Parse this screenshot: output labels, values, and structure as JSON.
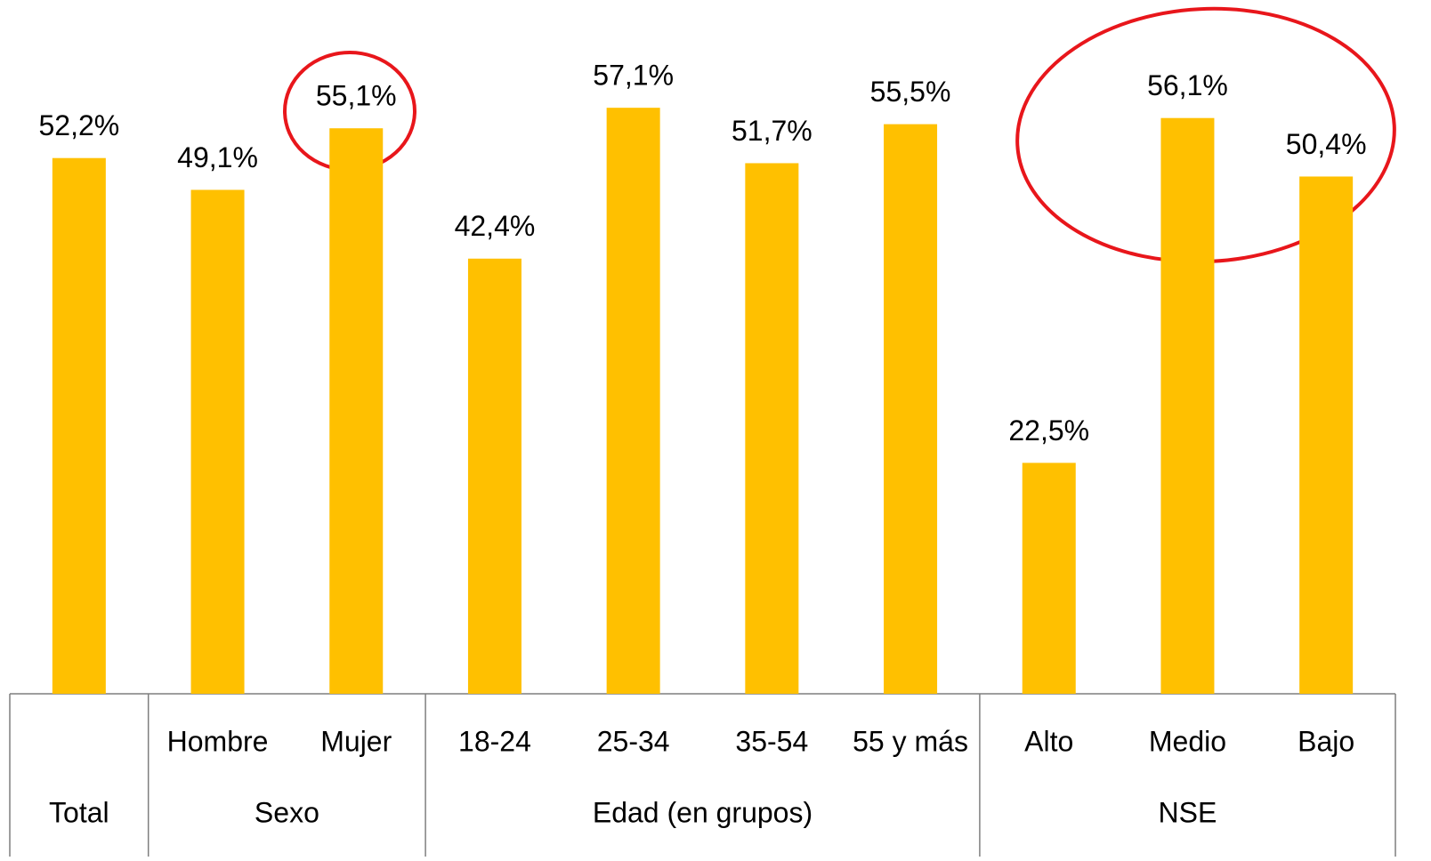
{
  "chart_data": {
    "type": "bar",
    "groups": [
      {
        "name": "Total",
        "categories": [
          null
        ]
      },
      {
        "name": "Sexo",
        "categories": [
          "Hombre",
          "Mujer"
        ]
      },
      {
        "name": "Edad (en grupos)",
        "categories": [
          "18-24",
          "25-34",
          "35-54",
          "55 y más"
        ]
      },
      {
        "name": "NSE",
        "categories": [
          "Alto",
          "Medio",
          "Bajo"
        ]
      }
    ],
    "values": [
      52.2,
      49.1,
      55.1,
      42.4,
      57.1,
      51.7,
      55.5,
      22.5,
      56.1,
      50.4
    ],
    "value_labels": [
      "52,2%",
      "49,1%",
      "55,1%",
      "42,4%",
      "57,1%",
      "51,7%",
      "55,5%",
      "22,5%",
      "56,1%",
      "50,4%"
    ],
    "color": "#ffc000",
    "ylim": [
      0,
      67.6
    ]
  }
}
